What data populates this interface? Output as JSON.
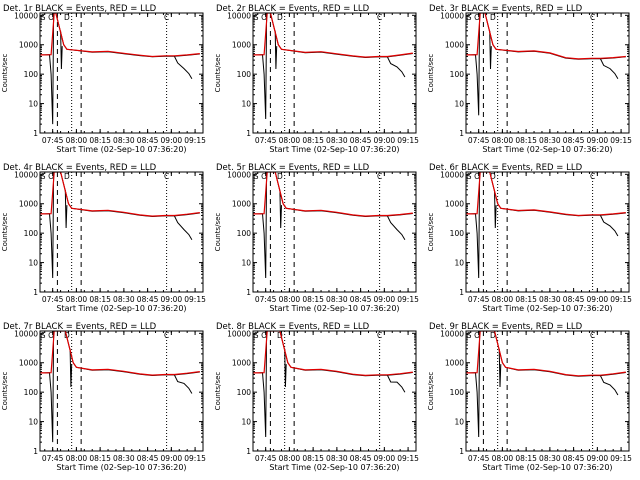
{
  "chart_data": {
    "type": "line",
    "layout": "3x3 grid of panels",
    "xlabel": "Start Time (02-Sep-10 07:36:20)",
    "ylabel": "Counts/sec",
    "x_tick_labels": [
      "07:45",
      "08:00",
      "08:15",
      "08:30",
      "08:45",
      "09:00",
      "09:15"
    ],
    "x_tick_minutes": [
      45,
      60,
      75,
      90,
      105,
      120,
      135
    ],
    "xlim_minutes": [
      37,
      140
    ],
    "y_tick_labels": [
      "1",
      "10",
      "100",
      "1000",
      "10000"
    ],
    "y_tick_values": [
      1,
      10,
      100,
      1000,
      10000
    ],
    "ylog": true,
    "ylim": [
      1,
      12000
    ],
    "series_colors": {
      "black": "#000000",
      "red": "#e00000"
    },
    "markers": {
      "dashed_minutes": [
        48,
        63
      ],
      "dotted_minutes": [
        57,
        117
      ],
      "letters": [
        {
          "text": "S",
          "minute": 39
        },
        {
          "text": "O",
          "minute": 44
        },
        {
          "text": "D",
          "minute": 54
        },
        {
          "text": "C",
          "minute": 117
        }
      ]
    },
    "panels": [
      {
        "title": "Det. 1r  BLACK = Events, RED = LLD",
        "drop_min": 48,
        "black_spike_min": 2,
        "level": 600,
        "dip": 400,
        "end": 500,
        "tail": 70
      },
      {
        "title": "Det. 2r  BLACK = Events, RED = LLD",
        "drop_min": 49,
        "black_spike_min": 3,
        "level": 580,
        "dip": 380,
        "end": 520,
        "tail": 80
      },
      {
        "title": "Det. 3r  BLACK = Events, RED = LLD",
        "drop_min": 50,
        "black_spike_min": 4,
        "level": 620,
        "dip": 330,
        "end": 400,
        "tail": 70
      },
      {
        "title": "Det. 4r  BLACK = Events, RED = LLD",
        "drop_min": 51,
        "black_spike_min": 3,
        "level": 600,
        "dip": 380,
        "end": 500,
        "tail": 60
      },
      {
        "title": "Det. 5r  BLACK = Events, RED = LLD",
        "drop_min": 52,
        "black_spike_min": 3,
        "level": 600,
        "dip": 380,
        "end": 480,
        "tail": 60
      },
      {
        "title": "Det. 6r  BLACK = Events, RED = LLD",
        "drop_min": 53,
        "black_spike_min": 3,
        "level": 620,
        "dip": 400,
        "end": 500,
        "tail": 80
      },
      {
        "title": "Det. 7r  BLACK = Events, RED = LLD",
        "drop_min": 54,
        "black_spike_min": 2,
        "level": 600,
        "dip": 380,
        "end": 500,
        "tail": 90
      },
      {
        "title": "Det. 8r  BLACK = Events, RED = LLD",
        "drop_min": 55,
        "black_spike_min": 3,
        "level": 600,
        "dip": 370,
        "end": 480,
        "tail": 100
      },
      {
        "title": "Det. 9r  BLACK = Events, RED = LLD",
        "drop_min": 56,
        "black_spike_min": 3,
        "level": 600,
        "dip": 360,
        "end": 480,
        "tail": 80
      }
    ]
  }
}
